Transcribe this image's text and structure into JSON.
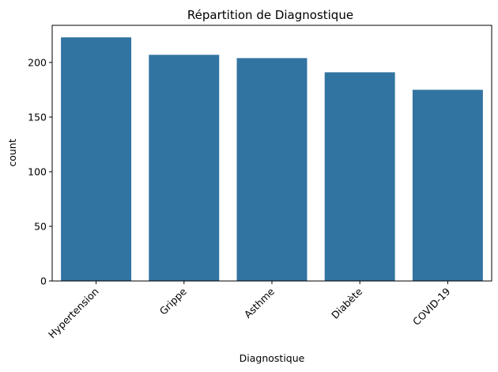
{
  "chart_data": {
    "type": "bar",
    "title": "Répartition de Diagnostique",
    "xlabel": "Diagnostique",
    "ylabel": "count",
    "categories": [
      "Hypertension",
      "Grippe",
      "Asthme",
      "Diabète",
      "COVID-19"
    ],
    "values": [
      223,
      207,
      204,
      191,
      175
    ],
    "ylim": [
      0,
      234
    ],
    "yticks": [
      0,
      50,
      100,
      150,
      200
    ],
    "bar_color": "#3274a1",
    "grid": false,
    "legend": "none"
  }
}
